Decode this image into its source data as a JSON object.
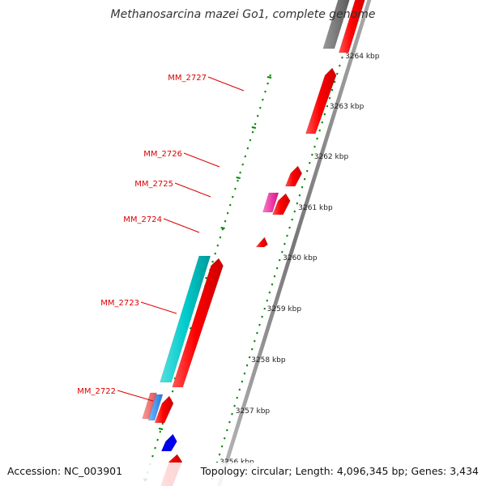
{
  "title": "Methanosarcina mazei Go1, complete genome",
  "footer": {
    "accession": "Accession: NC_003901",
    "info": "Topology: circular; Length: 4,096,345 bp; Genes: 3,434"
  },
  "ticks": [
    "3264 kbp",
    "3263 kbp",
    "3262 kbp",
    "3261 kbp",
    "3260 kbp",
    "3259 kbp",
    "3258 kbp",
    "3257 kbp",
    "3256 kbp"
  ],
  "gene_labels": [
    "MM_2727",
    "MM_2726",
    "MM_2725",
    "MM_2724",
    "MM_2723",
    "MM_2722"
  ],
  "colors": {
    "forward_strand": "#ff0000",
    "reverse_strand_a": "#00cccc",
    "reverse_strand_b": "#ff33aa",
    "reverse_strand_c": "#3399ff",
    "other": "#0000ee",
    "backbone": "#888888",
    "ruler": "#008800",
    "label_line": "#dd0000"
  }
}
